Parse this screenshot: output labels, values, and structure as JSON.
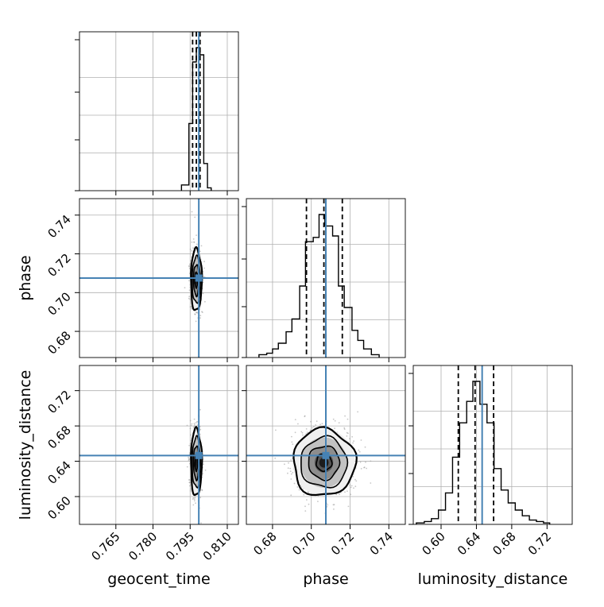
{
  "chart_data": {
    "type": "corner",
    "parameters": [
      "geocent_time",
      "phase",
      "luminosity_distance"
    ],
    "axis_labels": {
      "geocent_time": "geocent_time",
      "phase": "phase",
      "luminosity_distance": "luminosity_distance"
    },
    "ranges": {
      "geocent_time": [
        0.7503,
        0.8145
      ],
      "phase": [
        0.6665,
        0.7485
      ],
      "luminosity_distance": [
        0.5685,
        0.7485
      ]
    },
    "ticks": {
      "geocent_time": [
        "0.765",
        "0.780",
        "0.795",
        "0.810"
      ],
      "phase": [
        "0.68",
        "0.70",
        "0.72",
        "0.74"
      ],
      "luminosity_distance": [
        "0.60",
        "0.64",
        "0.68",
        "0.72"
      ]
    },
    "truths": {
      "geocent_time": 0.7985,
      "phase": 0.7075,
      "luminosity_distance": 0.6465
    },
    "quantiles": {
      "geocent_time": [
        0.796,
        0.7975,
        0.799
      ],
      "phase": [
        0.6975,
        0.7065,
        0.716
      ],
      "luminosity_distance": [
        0.6195,
        0.6385,
        0.6595
      ]
    },
    "histograms": {
      "geocent_time": {
        "bin_edges": [
          0.7915,
          0.7945,
          0.796,
          0.7975,
          0.799,
          0.8005,
          0.802,
          0.8035
        ],
        "counts": [
          0.04,
          0.47,
          0.9,
          1.0,
          0.95,
          0.19,
          0.02
        ]
      },
      "phase": {
        "bin_edges": [
          0.673,
          0.677,
          0.68,
          0.683,
          0.687,
          0.69,
          0.694,
          0.697,
          0.701,
          0.704,
          0.707,
          0.711,
          0.714,
          0.717,
          0.721,
          0.724,
          0.727,
          0.731,
          0.735
        ],
        "counts": [
          0.02,
          0.03,
          0.06,
          0.1,
          0.18,
          0.27,
          0.5,
          0.81,
          0.84,
          1.0,
          0.92,
          0.85,
          0.5,
          0.35,
          0.19,
          0.12,
          0.06,
          0.02
        ]
      },
      "luminosity_distance": {
        "bin_edges": [
          0.572,
          0.581,
          0.589,
          0.597,
          0.605,
          0.613,
          0.621,
          0.629,
          0.636,
          0.644,
          0.652,
          0.66,
          0.668,
          0.676,
          0.684,
          0.692,
          0.7,
          0.708,
          0.716,
          0.723
        ],
        "counts": [
          0.01,
          0.02,
          0.04,
          0.1,
          0.22,
          0.47,
          0.71,
          0.86,
          1.0,
          0.84,
          0.71,
          0.39,
          0.24,
          0.15,
          0.1,
          0.06,
          0.03,
          0.02,
          0.01
        ]
      }
    },
    "posterior_2d": {
      "phase|geocent_time": {
        "center": [
          0.7975,
          0.7065
        ],
        "sigma": [
          0.0011,
          0.008
        ],
        "contour_sigmas": [
          0.5,
          1.0,
          1.5,
          2.0
        ]
      },
      "luminosity_distance|geocent_time": {
        "center": [
          0.7975,
          0.6385
        ],
        "sigma": [
          0.0011,
          0.019
        ],
        "contour_sigmas": [
          0.5,
          1.0,
          1.5,
          2.0
        ]
      },
      "luminosity_distance|phase": {
        "center": [
          0.7065,
          0.6385
        ],
        "sigma": [
          0.008,
          0.019
        ],
        "contour_sigmas": [
          0.5,
          1.0,
          1.5,
          2.0
        ]
      }
    },
    "grid": true,
    "colors": {
      "truth": "#4682b4",
      "hist": "#000000",
      "quantile": "#000000",
      "grid": "#b0b0b0",
      "points": "#999999"
    }
  }
}
